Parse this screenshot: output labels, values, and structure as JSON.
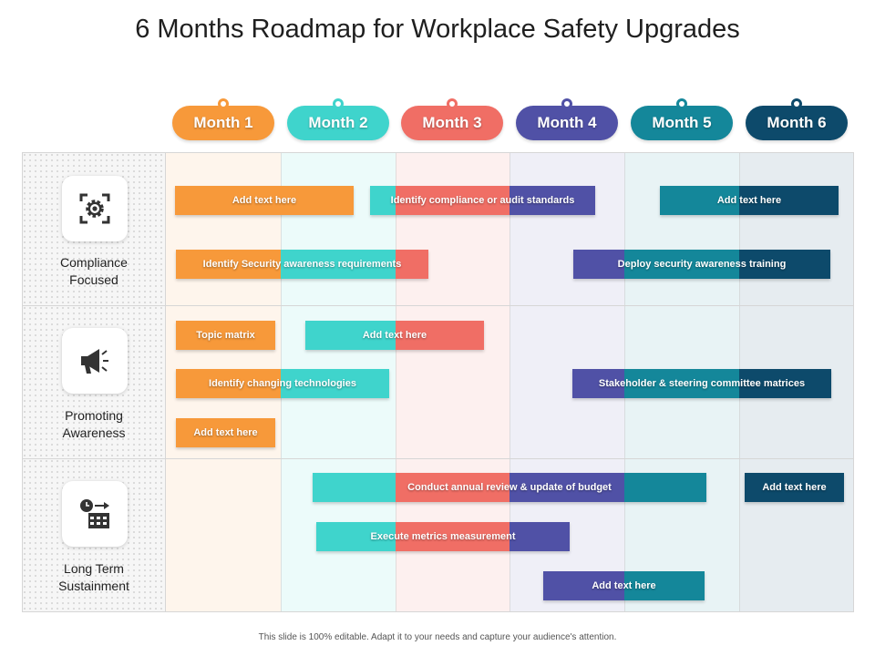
{
  "title": "6 Months Roadmap for Workplace Safety Upgrades",
  "footer": "This slide is 100% editable. Adapt it to your needs and capture your audience's attention.",
  "months": [
    {
      "label": "Month 1",
      "color": "#f7993a"
    },
    {
      "label": "Month 2",
      "color": "#3fd4cc"
    },
    {
      "label": "Month 3",
      "color": "#f06e65"
    },
    {
      "label": "Month 4",
      "color": "#5051a6"
    },
    {
      "label": "Month 5",
      "color": "#14879a"
    },
    {
      "label": "Month 6",
      "color": "#0d4a6b"
    }
  ],
  "categories": [
    {
      "label_line1": "Compliance",
      "label_line2": "Focused",
      "icon": "gear-icon"
    },
    {
      "label_line1": "Promoting",
      "label_line2": "Awareness",
      "icon": "megaphone-icon"
    },
    {
      "label_line1": "Long Term",
      "label_line2": "Sustainment",
      "icon": "calendar-clock-icon"
    }
  ],
  "tasks": {
    "compliance": [
      {
        "label": "Add text here"
      },
      {
        "label": "Identify compliance or audit standards"
      },
      {
        "label": "Add text here"
      },
      {
        "label": "Identify Security awareness requirements"
      },
      {
        "label": "Deploy security awareness training"
      }
    ],
    "awareness": [
      {
        "label": "Topic matrix"
      },
      {
        "label": "Add text here"
      },
      {
        "label": "Identify changing technologies"
      },
      {
        "label": "Stakeholder & steering committee matrices"
      },
      {
        "label": "Add text here"
      }
    ],
    "sustainment": [
      {
        "label": "Conduct annual review & update of budget"
      },
      {
        "label": "Add text here"
      },
      {
        "label": "Execute metrics measurement"
      },
      {
        "label": "Add text here"
      }
    ]
  }
}
